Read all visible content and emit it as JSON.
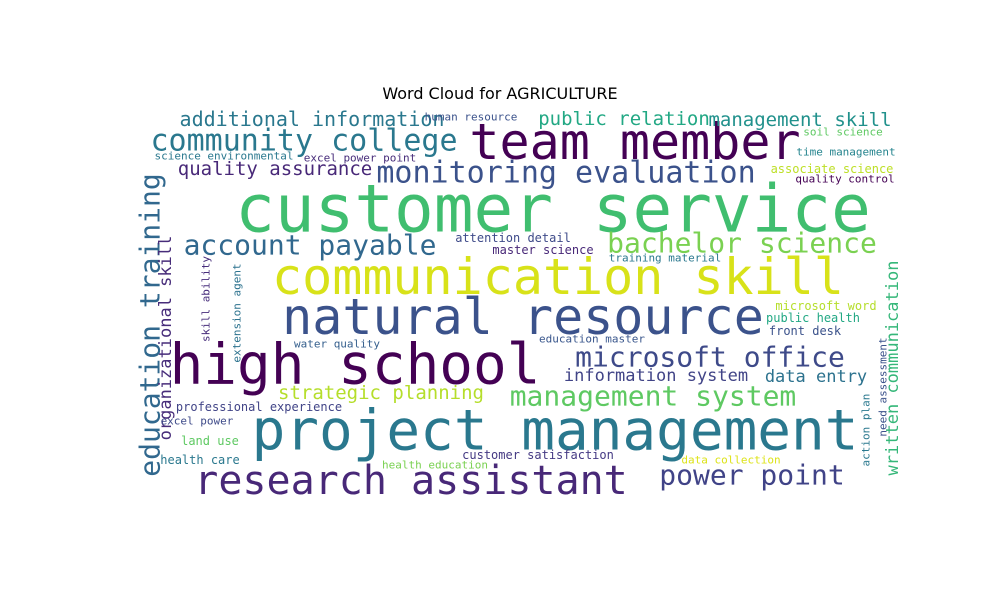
{
  "chart_data": {
    "type": "wordcloud",
    "title": "Word Cloud for AGRICULTURE",
    "words": [
      {
        "text": "customer service",
        "weight": 1.0,
        "color": "#40be6f",
        "orient": "h"
      },
      {
        "text": "team member",
        "weight": 0.8,
        "color": "#440154",
        "orient": "h"
      },
      {
        "text": "communication skill",
        "weight": 0.85,
        "color": "#d8e219",
        "orient": "h"
      },
      {
        "text": "natural resource",
        "weight": 0.85,
        "color": "#3b528b",
        "orient": "h"
      },
      {
        "text": "high school",
        "weight": 0.85,
        "color": "#440154",
        "orient": "h"
      },
      {
        "text": "project management",
        "weight": 0.85,
        "color": "#2a788e",
        "orient": "h"
      },
      {
        "text": "research assistant",
        "weight": 0.7,
        "color": "#482878",
        "orient": "h"
      },
      {
        "text": "monitoring evaluation",
        "weight": 0.55,
        "color": "#3b528b",
        "orient": "h"
      },
      {
        "text": "community college",
        "weight": 0.55,
        "color": "#2a788e",
        "orient": "h"
      },
      {
        "text": "account payable",
        "weight": 0.55,
        "color": "#31688e",
        "orient": "h"
      },
      {
        "text": "bachelor science",
        "weight": 0.55,
        "color": "#7ad151",
        "orient": "h"
      },
      {
        "text": "microsoft office",
        "weight": 0.55,
        "color": "#3e4a89",
        "orient": "h"
      },
      {
        "text": "management system",
        "weight": 0.55,
        "color": "#5ec962",
        "orient": "h"
      },
      {
        "text": "power point",
        "weight": 0.5,
        "color": "#404387",
        "orient": "h"
      },
      {
        "text": "education training",
        "weight": 0.55,
        "color": "#31688e",
        "orient": "v"
      },
      {
        "text": "additional information",
        "weight": 0.35,
        "color": "#2a788e",
        "orient": "h"
      },
      {
        "text": "public relation",
        "weight": 0.35,
        "color": "#22a884",
        "orient": "h"
      },
      {
        "text": "management skill",
        "weight": 0.35,
        "color": "#21918c",
        "orient": "h"
      },
      {
        "text": "quality assurance",
        "weight": 0.35,
        "color": "#482878",
        "orient": "h"
      },
      {
        "text": "strategic planning",
        "weight": 0.35,
        "color": "#b5de2b",
        "orient": "h"
      },
      {
        "text": "information system",
        "weight": 0.3,
        "color": "#414487",
        "orient": "h"
      },
      {
        "text": "data entry",
        "weight": 0.35,
        "color": "#2c728e",
        "orient": "h"
      },
      {
        "text": "organizational skill",
        "weight": 0.3,
        "color": "#472c7a",
        "orient": "v"
      },
      {
        "text": "written communication",
        "weight": 0.3,
        "color": "#35b779",
        "orient": "v"
      },
      {
        "text": "human resource",
        "weight": 0.15,
        "color": "#3b528b",
        "orient": "h"
      },
      {
        "text": "soil science",
        "weight": 0.15,
        "color": "#5ec962",
        "orient": "h"
      },
      {
        "text": "science environmental",
        "weight": 0.15,
        "color": "#2a788e",
        "orient": "h"
      },
      {
        "text": "excel power point",
        "weight": 0.15,
        "color": "#472c7a",
        "orient": "h"
      },
      {
        "text": "time management",
        "weight": 0.15,
        "color": "#25848e",
        "orient": "h"
      },
      {
        "text": "associate science",
        "weight": 0.15,
        "color": "#bddf26",
        "orient": "h"
      },
      {
        "text": "quality control",
        "weight": 0.15,
        "color": "#440154",
        "orient": "h"
      },
      {
        "text": "attention detail",
        "weight": 0.15,
        "color": "#3e4a89",
        "orient": "h"
      },
      {
        "text": "master science",
        "weight": 0.15,
        "color": "#482878",
        "orient": "h"
      },
      {
        "text": "training material",
        "weight": 0.15,
        "color": "#2a788e",
        "orient": "h"
      },
      {
        "text": "microsoft word",
        "weight": 0.15,
        "color": "#b5de2b",
        "orient": "h"
      },
      {
        "text": "public health",
        "weight": 0.15,
        "color": "#22a884",
        "orient": "h"
      },
      {
        "text": "front desk",
        "weight": 0.15,
        "color": "#3b528b",
        "orient": "h"
      },
      {
        "text": "education master",
        "weight": 0.15,
        "color": "#39568c",
        "orient": "h"
      },
      {
        "text": "water quality",
        "weight": 0.15,
        "color": "#355f8d",
        "orient": "h"
      },
      {
        "text": "professional experience",
        "weight": 0.15,
        "color": "#414487",
        "orient": "h"
      },
      {
        "text": "excel power",
        "weight": 0.15,
        "color": "#3e4a89",
        "orient": "h"
      },
      {
        "text": "land use",
        "weight": 0.15,
        "color": "#5ec962",
        "orient": "h"
      },
      {
        "text": "health care",
        "weight": 0.15,
        "color": "#2a788e",
        "orient": "h"
      },
      {
        "text": "health education",
        "weight": 0.15,
        "color": "#7ad151",
        "orient": "h"
      },
      {
        "text": "customer satisfaction",
        "weight": 0.15,
        "color": "#443983",
        "orient": "h"
      },
      {
        "text": "data collection",
        "weight": 0.15,
        "color": "#dde318",
        "orient": "h"
      },
      {
        "text": "skill ability",
        "weight": 0.15,
        "color": "#472d7b",
        "orient": "v"
      },
      {
        "text": "extension agent",
        "weight": 0.15,
        "color": "#2c728e",
        "orient": "v"
      },
      {
        "text": "action plan",
        "weight": 0.15,
        "color": "#2a788e",
        "orient": "v"
      },
      {
        "text": "need assessment",
        "weight": 0.15,
        "color": "#3b528b",
        "orient": "v"
      }
    ]
  }
}
